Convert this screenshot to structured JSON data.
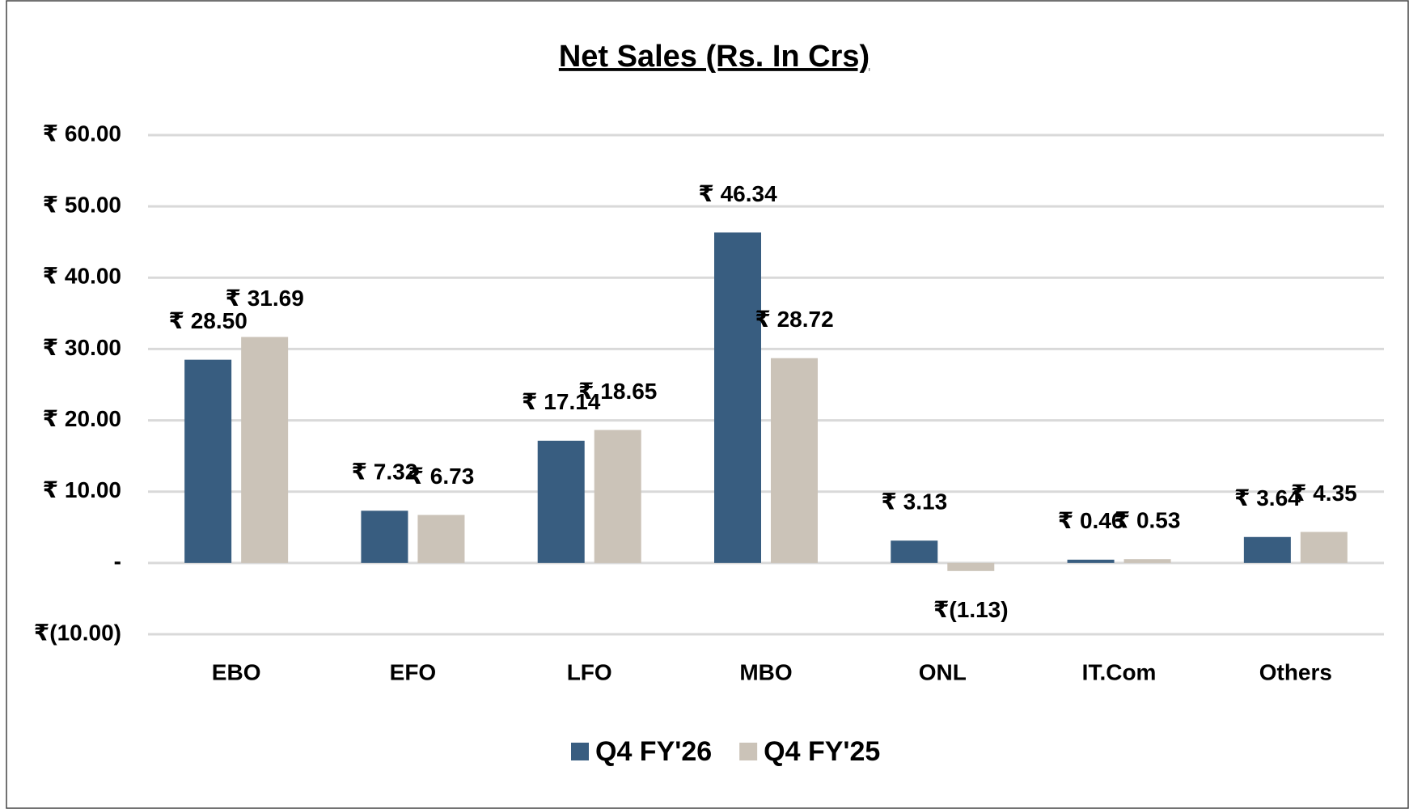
{
  "chart_data": {
    "type": "bar",
    "title": "Net Sales (Rs. In Crs)",
    "categories": [
      "EBO",
      "EFO",
      "LFO",
      "MBO",
      "ONL",
      "IT.Com",
      "Others"
    ],
    "series": [
      {
        "name": "Q4 FY'26",
        "color": "#385d80",
        "values": [
          28.5,
          7.32,
          17.14,
          46.34,
          3.13,
          0.46,
          3.64
        ],
        "value_labels": [
          "₹ 28.50",
          "₹ 7.32",
          "₹ 17.14",
          "₹ 46.34",
          "₹ 3.13",
          "₹ 0.46",
          "₹ 3.64"
        ]
      },
      {
        "name": "Q4 FY'25",
        "color": "#cbc3b8",
        "values": [
          31.69,
          6.73,
          18.65,
          28.72,
          -1.13,
          0.53,
          4.35
        ],
        "value_labels": [
          "₹ 31.69",
          "₹ 6.73",
          "₹ 18.65",
          "₹ 28.72",
          "₹(1.13)",
          "₹ 0.53",
          "₹ 4.35"
        ]
      }
    ],
    "ylim": [
      -10,
      60
    ],
    "yticks": [
      {
        "value": -10,
        "label": "₹(10.00)"
      },
      {
        "value": 0,
        "label": "-"
      },
      {
        "value": 10,
        "label": "₹ 10.00"
      },
      {
        "value": 20,
        "label": "₹ 20.00"
      },
      {
        "value": 30,
        "label": "₹ 30.00"
      },
      {
        "value": 40,
        "label": "₹ 40.00"
      },
      {
        "value": 50,
        "label": "₹ 50.00"
      },
      {
        "value": 60,
        "label": "₹ 60.00"
      }
    ],
    "grid": true,
    "legend": "bottom"
  }
}
